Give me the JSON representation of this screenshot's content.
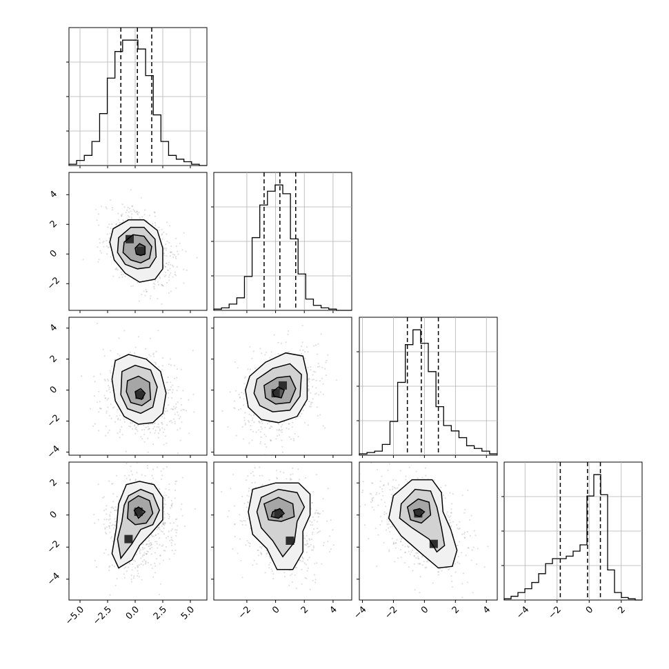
{
  "chart_data": {
    "type": "corner",
    "variables": 4,
    "colors": {
      "line": "#000000",
      "grid": "#b0b0b0",
      "points": "#8c8c8c",
      "background": "#ffffff"
    },
    "columns": [
      {
        "range": [
          -6,
          6.5
        ],
        "ticks": [
          -5,
          -2.5,
          0,
          2.5,
          5
        ],
        "tick_labels": [
          "−5.0",
          "−2.5",
          "0.0",
          "2.5",
          "5.0"
        ]
      },
      {
        "range": [
          -4.3,
          5.3
        ],
        "ticks": [
          -2,
          0,
          2,
          4
        ],
        "tick_labels": [
          "−2",
          "0",
          "2",
          "4"
        ]
      },
      {
        "range": [
          -4.2,
          4.7
        ],
        "ticks": [
          -4,
          -2,
          0,
          2,
          4
        ],
        "tick_labels": [
          "−4",
          "−2",
          "0",
          "2",
          "4"
        ]
      },
      {
        "range": [
          -5.3,
          3.3
        ],
        "ticks": [
          -4,
          -2,
          0,
          2
        ],
        "tick_labels": [
          "−4",
          "−2",
          "0",
          "2"
        ]
      }
    ],
    "rows": [
      null,
      {
        "range": [
          -3.8,
          5.5
        ],
        "ticks": [
          -2,
          0,
          2,
          4
        ],
        "tick_labels": [
          "−2",
          "0",
          "2",
          "4"
        ]
      },
      {
        "range": [
          -4.2,
          4.7
        ],
        "ticks": [
          -4,
          -2,
          0,
          2,
          4
        ],
        "tick_labels": [
          "−4",
          "−2",
          "0",
          "2",
          "4"
        ]
      },
      {
        "range": [
          -5.3,
          3.3
        ],
        "ticks": [
          -4,
          -2,
          0,
          2
        ],
        "tick_labels": [
          "−4",
          "−2",
          "0",
          "2"
        ]
      }
    ],
    "histograms": [
      {
        "edges_range": [
          -6,
          6.5
        ],
        "counts": [
          1,
          4,
          8,
          19,
          41,
          69,
          90,
          99,
          99,
          92,
          71,
          40,
          19,
          8,
          5,
          3,
          1,
          0
        ],
        "quantiles": [
          -1.3,
          0.2,
          1.5
        ]
      },
      {
        "edges_range": [
          -4.3,
          5.3
        ],
        "counts": [
          1,
          2,
          5,
          10,
          27,
          58,
          84,
          95,
          100,
          93,
          57,
          29,
          9,
          4,
          2,
          1,
          0,
          0
        ],
        "quantiles": [
          -0.8,
          0.3,
          1.4
        ]
      },
      {
        "edges_range": [
          -4.2,
          4.7
        ],
        "counts": [
          1,
          2,
          3,
          8,
          25,
          54,
          82,
          93,
          83,
          62,
          36,
          22,
          18,
          13,
          7,
          5,
          3,
          1
        ],
        "quantiles": [
          -1.1,
          -0.2,
          0.9
        ]
      },
      {
        "edges_range": [
          -5.3,
          3.3
        ],
        "counts": [
          1,
          3,
          6,
          9,
          14,
          21,
          29,
          33,
          33,
          35,
          39,
          44,
          83,
          100,
          84,
          24,
          6,
          2,
          1,
          0
        ],
        "quantiles": [
          -1.8,
          -0.1,
          0.7
        ]
      }
    ],
    "pairs": [
      {
        "row": 1,
        "col": 0,
        "mean": [
          0.5,
          0.4
        ],
        "sd": [
          1.6,
          1.3
        ],
        "rho": -0.35,
        "dense": [
          [
            -0.5,
            1.0
          ],
          [
            0.5,
            0.2
          ]
        ],
        "contours": [
          [
            [
              -2.0,
              1.7
            ],
            [
              -0.6,
              2.3
            ],
            [
              0.8,
              2.3
            ],
            [
              2.0,
              1.6
            ],
            [
              2.5,
              0.4
            ],
            [
              2.5,
              -1.0
            ],
            [
              1.8,
              -1.7
            ],
            [
              0.4,
              -1.9
            ],
            [
              -0.9,
              -1.3
            ],
            [
              -1.9,
              -0.4
            ],
            [
              -2.3,
              0.8
            ]
          ],
          [
            [
              -1.5,
              1.1
            ],
            [
              -0.4,
              1.8
            ],
            [
              0.8,
              1.8
            ],
            [
              1.8,
              1.0
            ],
            [
              1.9,
              -0.2
            ],
            [
              1.3,
              -0.9
            ],
            [
              0.2,
              -1.0
            ],
            [
              -0.9,
              -0.7
            ],
            [
              -1.6,
              0.1
            ]
          ],
          [
            [
              -1.0,
              0.8
            ],
            [
              -0.2,
              1.3
            ],
            [
              0.8,
              1.2
            ],
            [
              1.5,
              0.5
            ],
            [
              1.3,
              -0.3
            ],
            [
              0.5,
              -0.6
            ],
            [
              -0.4,
              -0.4
            ],
            [
              -1.1,
              0.1
            ]
          ],
          [
            [
              0.0,
              0.4
            ],
            [
              0.4,
              0.7
            ],
            [
              0.9,
              0.5
            ],
            [
              0.9,
              0.0
            ],
            [
              0.5,
              -0.1
            ],
            [
              0.1,
              0.0
            ]
          ]
        ]
      },
      {
        "row": 2,
        "col": 0,
        "mean": [
          0.5,
          -0.3
        ],
        "sd": [
          1.7,
          1.4
        ],
        "rho": -0.2,
        "dense": [
          [
            0.4,
            -0.3
          ]
        ],
        "contours": [
          [
            [
              -1.8,
              1.9
            ],
            [
              -0.6,
              2.3
            ],
            [
              1.0,
              2.0
            ],
            [
              2.3,
              1.2
            ],
            [
              2.8,
              -0.2
            ],
            [
              2.5,
              -1.5
            ],
            [
              1.6,
              -2.1
            ],
            [
              0.3,
              -2.2
            ],
            [
              -1.0,
              -1.7
            ],
            [
              -1.8,
              -0.7
            ],
            [
              -2.1,
              0.7
            ]
          ],
          [
            [
              -1.2,
              1.2
            ],
            [
              0.0,
              1.6
            ],
            [
              1.4,
              1.3
            ],
            [
              2.0,
              0.2
            ],
            [
              1.6,
              -1.1
            ],
            [
              0.5,
              -1.5
            ],
            [
              -0.7,
              -1.2
            ],
            [
              -1.3,
              -0.3
            ]
          ],
          [
            [
              -0.7,
              0.6
            ],
            [
              0.3,
              0.9
            ],
            [
              1.3,
              0.5
            ],
            [
              1.4,
              -0.6
            ],
            [
              0.6,
              -1.0
            ],
            [
              -0.4,
              -0.8
            ],
            [
              -0.8,
              -0.1
            ]
          ],
          [
            [
              0.0,
              -0.1
            ],
            [
              0.5,
              0.1
            ],
            [
              0.9,
              -0.2
            ],
            [
              0.6,
              -0.6
            ],
            [
              0.1,
              -0.5
            ]
          ]
        ]
      },
      {
        "row": 2,
        "col": 1,
        "mean": [
          0.3,
          -0.3
        ],
        "sd": [
          1.3,
          1.4
        ],
        "rho": 0.25,
        "dense": [
          [
            0.0,
            -0.2
          ],
          [
            0.5,
            0.3
          ]
        ],
        "contours": [
          [
            [
              -1.8,
              0.9
            ],
            [
              -0.7,
              1.8
            ],
            [
              0.7,
              2.4
            ],
            [
              1.9,
              2.2
            ],
            [
              2.2,
              1.0
            ],
            [
              2.2,
              -0.6
            ],
            [
              1.5,
              -1.7
            ],
            [
              0.2,
              -2.1
            ],
            [
              -1.0,
              -1.9
            ],
            [
              -1.9,
              -1.1
            ],
            [
              -2.1,
              0.0
            ]
          ],
          [
            [
              -1.3,
              0.7
            ],
            [
              -0.2,
              1.4
            ],
            [
              1.0,
              1.7
            ],
            [
              1.8,
              1.0
            ],
            [
              1.7,
              -0.4
            ],
            [
              1.0,
              -1.3
            ],
            [
              -0.2,
              -1.4
            ],
            [
              -1.1,
              -1.0
            ],
            [
              -1.5,
              -0.2
            ]
          ],
          [
            [
              -0.8,
              0.3
            ],
            [
              0.1,
              0.8
            ],
            [
              1.0,
              0.9
            ],
            [
              1.4,
              0.1
            ],
            [
              1.0,
              -0.8
            ],
            [
              0.0,
              -0.9
            ],
            [
              -0.7,
              -0.5
            ]
          ],
          [
            [
              -0.2,
              -0.1
            ],
            [
              0.2,
              0.2
            ],
            [
              0.6,
              0.0
            ],
            [
              0.4,
              -0.5
            ],
            [
              -0.1,
              -0.4
            ]
          ]
        ]
      },
      {
        "row": 3,
        "col": 0,
        "mean": [
          0.6,
          -0.5
        ],
        "sd": [
          1.6,
          1.6
        ],
        "rho": 0.1,
        "dense": [
          [
            0.3,
            0.2
          ],
          [
            -0.6,
            -1.5
          ]
        ],
        "contours": [
          [
            [
              -0.8,
              1.9
            ],
            [
              0.4,
              2.1
            ],
            [
              1.7,
              1.9
            ],
            [
              2.5,
              1.1
            ],
            [
              2.5,
              -0.3
            ],
            [
              1.5,
              -1.1
            ],
            [
              0.4,
              -1.9
            ],
            [
              -0.3,
              -2.8
            ],
            [
              -1.5,
              -3.3
            ],
            [
              -2.1,
              -2.4
            ],
            [
              -1.7,
              -0.8
            ],
            [
              -1.5,
              0.7
            ]
          ],
          [
            [
              -0.6,
              1.2
            ],
            [
              0.5,
              1.6
            ],
            [
              1.6,
              1.3
            ],
            [
              2.2,
              0.3
            ],
            [
              1.6,
              -0.6
            ],
            [
              0.5,
              -0.9
            ],
            [
              -0.3,
              -1.8
            ],
            [
              -1.3,
              -2.7
            ],
            [
              -1.6,
              -1.5
            ],
            [
              -1.2,
              -0.4
            ],
            [
              -1.0,
              0.6
            ]
          ],
          [
            [
              -0.6,
              0.8
            ],
            [
              0.3,
              1.2
            ],
            [
              1.3,
              0.9
            ],
            [
              1.6,
              0.1
            ],
            [
              1.0,
              -0.5
            ],
            [
              0.0,
              -0.6
            ],
            [
              -0.7,
              -0.2
            ]
          ],
          [
            [
              -0.1,
              0.3
            ],
            [
              0.3,
              0.5
            ],
            [
              0.9,
              0.2
            ],
            [
              0.3,
              -0.2
            ]
          ]
        ]
      },
      {
        "row": 3,
        "col": 1,
        "mean": [
          0.3,
          -0.5
        ],
        "sd": [
          1.4,
          1.6
        ],
        "rho": -0.2,
        "dense": [
          [
            0.2,
            0.1
          ],
          [
            1.0,
            -1.6
          ]
        ],
        "contours": [
          [
            [
              -1.6,
              1.6
            ],
            [
              0.0,
              2.0
            ],
            [
              1.6,
              2.0
            ],
            [
              2.4,
              1.3
            ],
            [
              2.4,
              0.0
            ],
            [
              1.9,
              -1.0
            ],
            [
              1.9,
              -2.3
            ],
            [
              1.2,
              -3.4
            ],
            [
              0.1,
              -3.4
            ],
            [
              -0.6,
              -2.1
            ],
            [
              -1.6,
              -1.2
            ],
            [
              -1.9,
              0.2
            ]
          ],
          [
            [
              -1.0,
              1.1
            ],
            [
              0.2,
              1.6
            ],
            [
              1.5,
              1.4
            ],
            [
              2.0,
              0.5
            ],
            [
              1.5,
              -0.4
            ],
            [
              1.3,
              -1.7
            ],
            [
              0.5,
              -2.6
            ],
            [
              -0.2,
              -1.6
            ],
            [
              -1.0,
              -0.8
            ],
            [
              -1.3,
              0.2
            ]
          ],
          [
            [
              -0.8,
              0.7
            ],
            [
              0.2,
              1.1
            ],
            [
              1.2,
              0.7
            ],
            [
              1.3,
              -0.1
            ],
            [
              0.4,
              -0.4
            ],
            [
              -0.5,
              -0.3
            ]
          ],
          [
            [
              -0.2,
              0.2
            ],
            [
              0.3,
              0.4
            ],
            [
              0.6,
              0.1
            ],
            [
              0.2,
              -0.2
            ],
            [
              -0.3,
              -0.1
            ]
          ]
        ]
      },
      {
        "row": 3,
        "col": 2,
        "mean": [
          -0.3,
          -0.4
        ],
        "sd": [
          1.5,
          1.6
        ],
        "rho": -0.45,
        "dense": [
          [
            -0.4,
            0.1
          ],
          [
            0.6,
            -1.8
          ]
        ],
        "contours": [
          [
            [
              -2.0,
              1.2
            ],
            [
              -0.8,
              2.2
            ],
            [
              0.5,
              2.2
            ],
            [
              1.1,
              1.4
            ],
            [
              1.2,
              0.2
            ],
            [
              1.7,
              -0.9
            ],
            [
              2.1,
              -2.2
            ],
            [
              1.8,
              -3.2
            ],
            [
              0.9,
              -3.3
            ],
            [
              -0.2,
              -2.4
            ],
            [
              -1.5,
              -1.3
            ],
            [
              -2.3,
              -0.2
            ]
          ],
          [
            [
              -1.5,
              0.7
            ],
            [
              -0.6,
              1.6
            ],
            [
              0.4,
              1.5
            ],
            [
              0.8,
              0.5
            ],
            [
              1.1,
              -0.8
            ],
            [
              1.3,
              -1.9
            ],
            [
              0.8,
              -2.3
            ],
            [
              0.3,
              -1.5
            ],
            [
              -0.8,
              -0.8
            ],
            [
              -1.6,
              -0.2
            ]
          ],
          [
            [
              -1.1,
              0.5
            ],
            [
              -0.4,
              1.0
            ],
            [
              0.3,
              0.8
            ],
            [
              0.4,
              0.0
            ],
            [
              -0.2,
              -0.5
            ],
            [
              -0.9,
              -0.3
            ]
          ],
          [
            [
              -0.7,
              0.3
            ],
            [
              -0.3,
              0.4
            ],
            [
              0.0,
              0.2
            ],
            [
              -0.3,
              -0.1
            ],
            [
              -0.6,
              0.0
            ]
          ]
        ]
      }
    ]
  }
}
